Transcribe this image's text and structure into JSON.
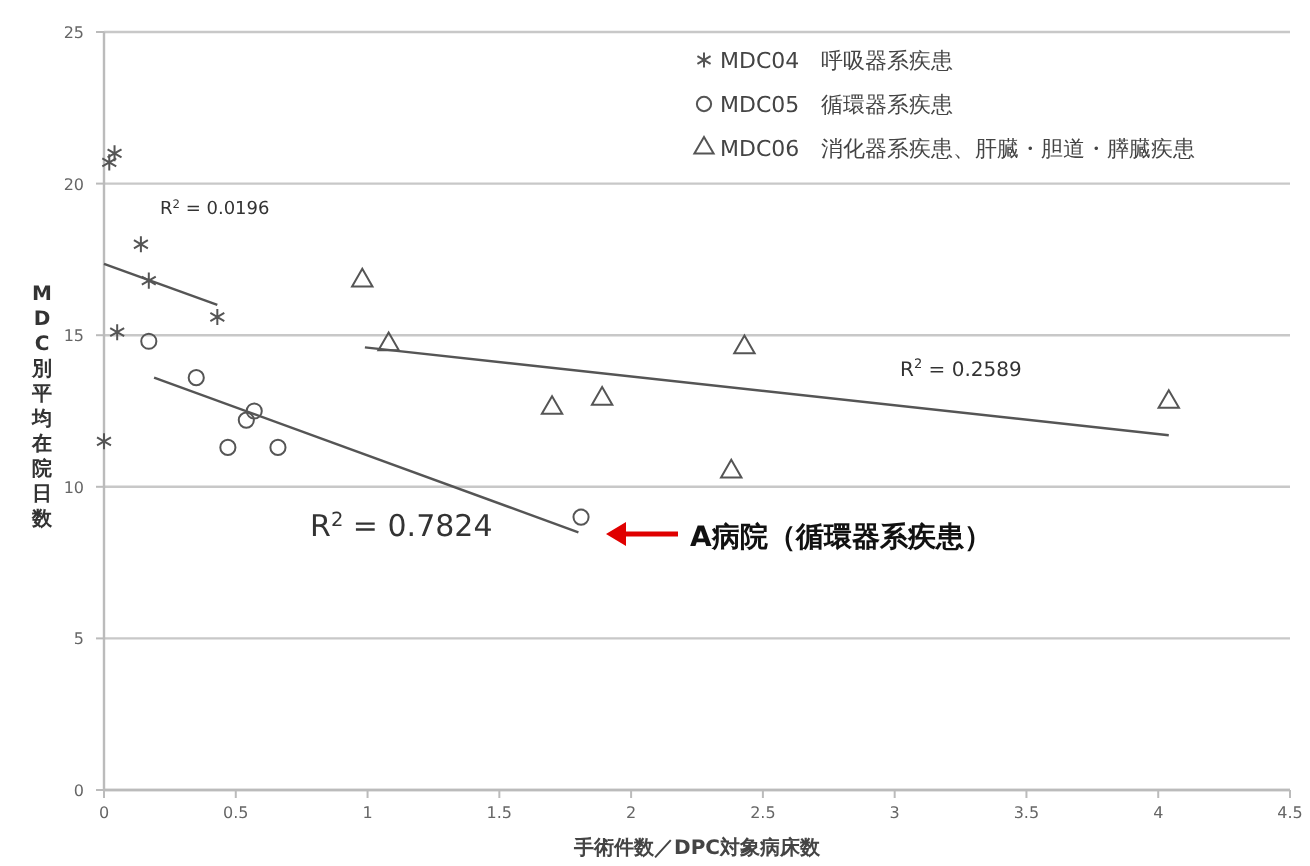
{
  "chart_data": {
    "type": "scatter",
    "xlabel": "手術件数／DPC対象病床数",
    "ylabel": "MDC別平均在院日数",
    "xlim": [
      0,
      4.5
    ],
    "xticks": [
      0,
      0.5,
      1,
      1.5,
      2,
      2.5,
      3,
      3.5,
      4,
      4.5
    ],
    "ylim": [
      0,
      25
    ],
    "yticks": [
      0,
      5,
      10,
      15,
      20,
      25
    ],
    "grid": "y",
    "legend": "top right",
    "series": [
      {
        "name": "MDC04　呼吸器系疾患",
        "color": "#555555",
        "marker": "cross",
        "x": [
          0.02,
          0.04,
          0.14,
          0.17,
          0.43,
          0.05,
          0
        ],
        "values": [
          20.7,
          21.0,
          18.0,
          16.8,
          15.6,
          15.1,
          11.5
        ]
      },
      {
        "name": "MDC05　循環器系疾患",
        "color": "#555555",
        "marker": "circle",
        "x": [
          0.17,
          0.35,
          0.47,
          0.54,
          0.57,
          0.66,
          1.81
        ],
        "values": [
          14.8,
          13.6,
          11.3,
          12.2,
          12.5,
          11.3,
          9.0
        ]
      },
      {
        "name": "MDC06　消化器系疾患、肝臓・胆道・膵臓疾患",
        "color": "#555555",
        "marker": "triangle",
        "x": [
          0.98,
          1.08,
          1.7,
          1.89,
          2.38,
          2.43,
          4.04
        ],
        "values": [
          16.8,
          14.7,
          12.6,
          12.9,
          10.5,
          14.6,
          12.8
        ]
      },
      {
        "type": "line",
        "color": "#555555",
        "marker": "none",
        "x": [
          0,
          0.43
        ],
        "values": [
          17.35,
          16.0
        ]
      },
      {
        "type": "line",
        "color": "#555555",
        "marker": "none",
        "x": [
          0.19,
          1.8
        ],
        "values": [
          13.6,
          8.5
        ]
      },
      {
        "type": "line",
        "color": "#555555",
        "marker": "none",
        "x": [
          0.99,
          4.04
        ],
        "values": [
          14.6,
          11.7
        ]
      }
    ],
    "annotations": [
      "R$^{2}$ = 0.0196",
      "R$^{2}$ = 0.7824",
      "R$^{2}$ = 0.2589",
      "A病院（循環器系疾患）"
    ]
  }
}
